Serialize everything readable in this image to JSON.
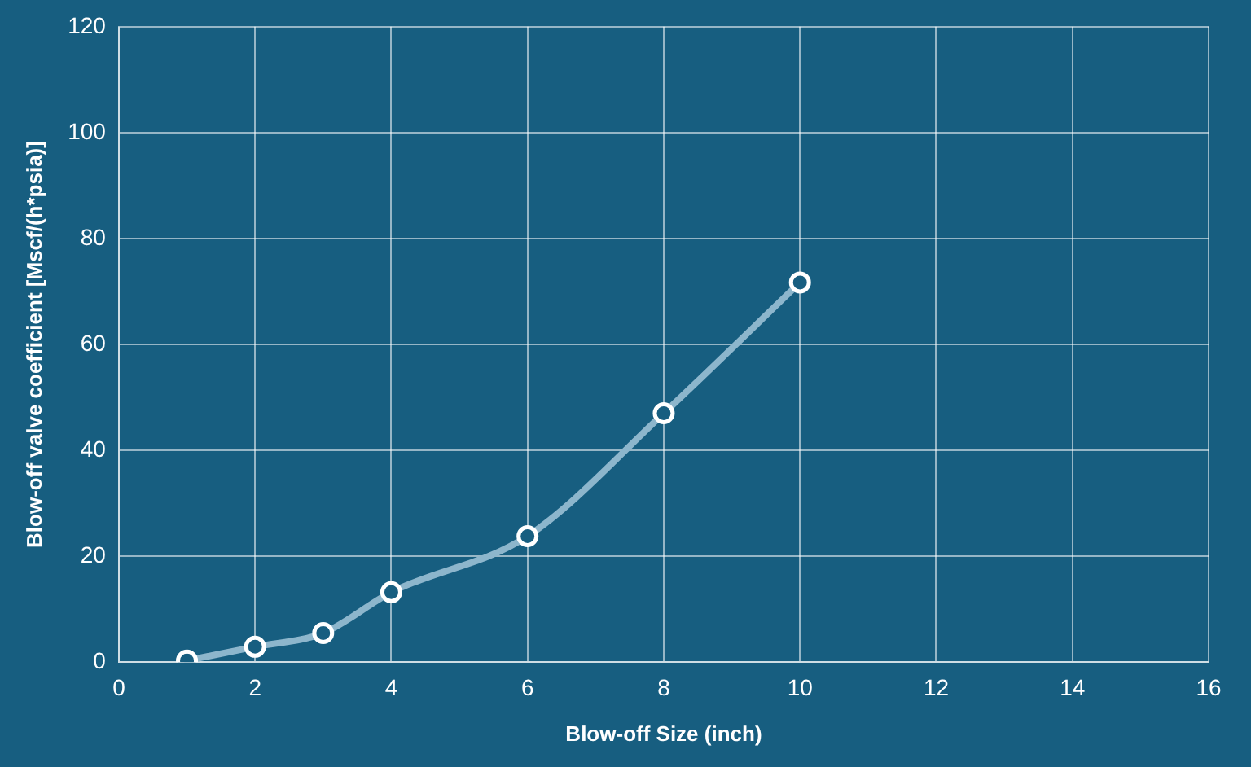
{
  "chart_data": {
    "type": "line",
    "xlabel": "Blow-off Size (inch)",
    "ylabel": "Blow-off valve coefficient [Mscf/(h*psia)]",
    "x": [
      1,
      2,
      3,
      4,
      6,
      8,
      10
    ],
    "series": [
      {
        "color": "#8db6cc",
        "values": [
          0.3,
          2.9,
          5.5,
          13.2,
          23.8,
          47,
          71.7
        ]
      }
    ],
    "xlim": [
      0,
      16
    ],
    "xticks": [
      0,
      2,
      4,
      6,
      8,
      10,
      12,
      14,
      16
    ],
    "ylim": [
      0,
      120
    ],
    "yticks": [
      0,
      20,
      40,
      60,
      80,
      100,
      120
    ],
    "grid": true,
    "legend": false,
    "marker": "circle",
    "line_style": "solid"
  }
}
